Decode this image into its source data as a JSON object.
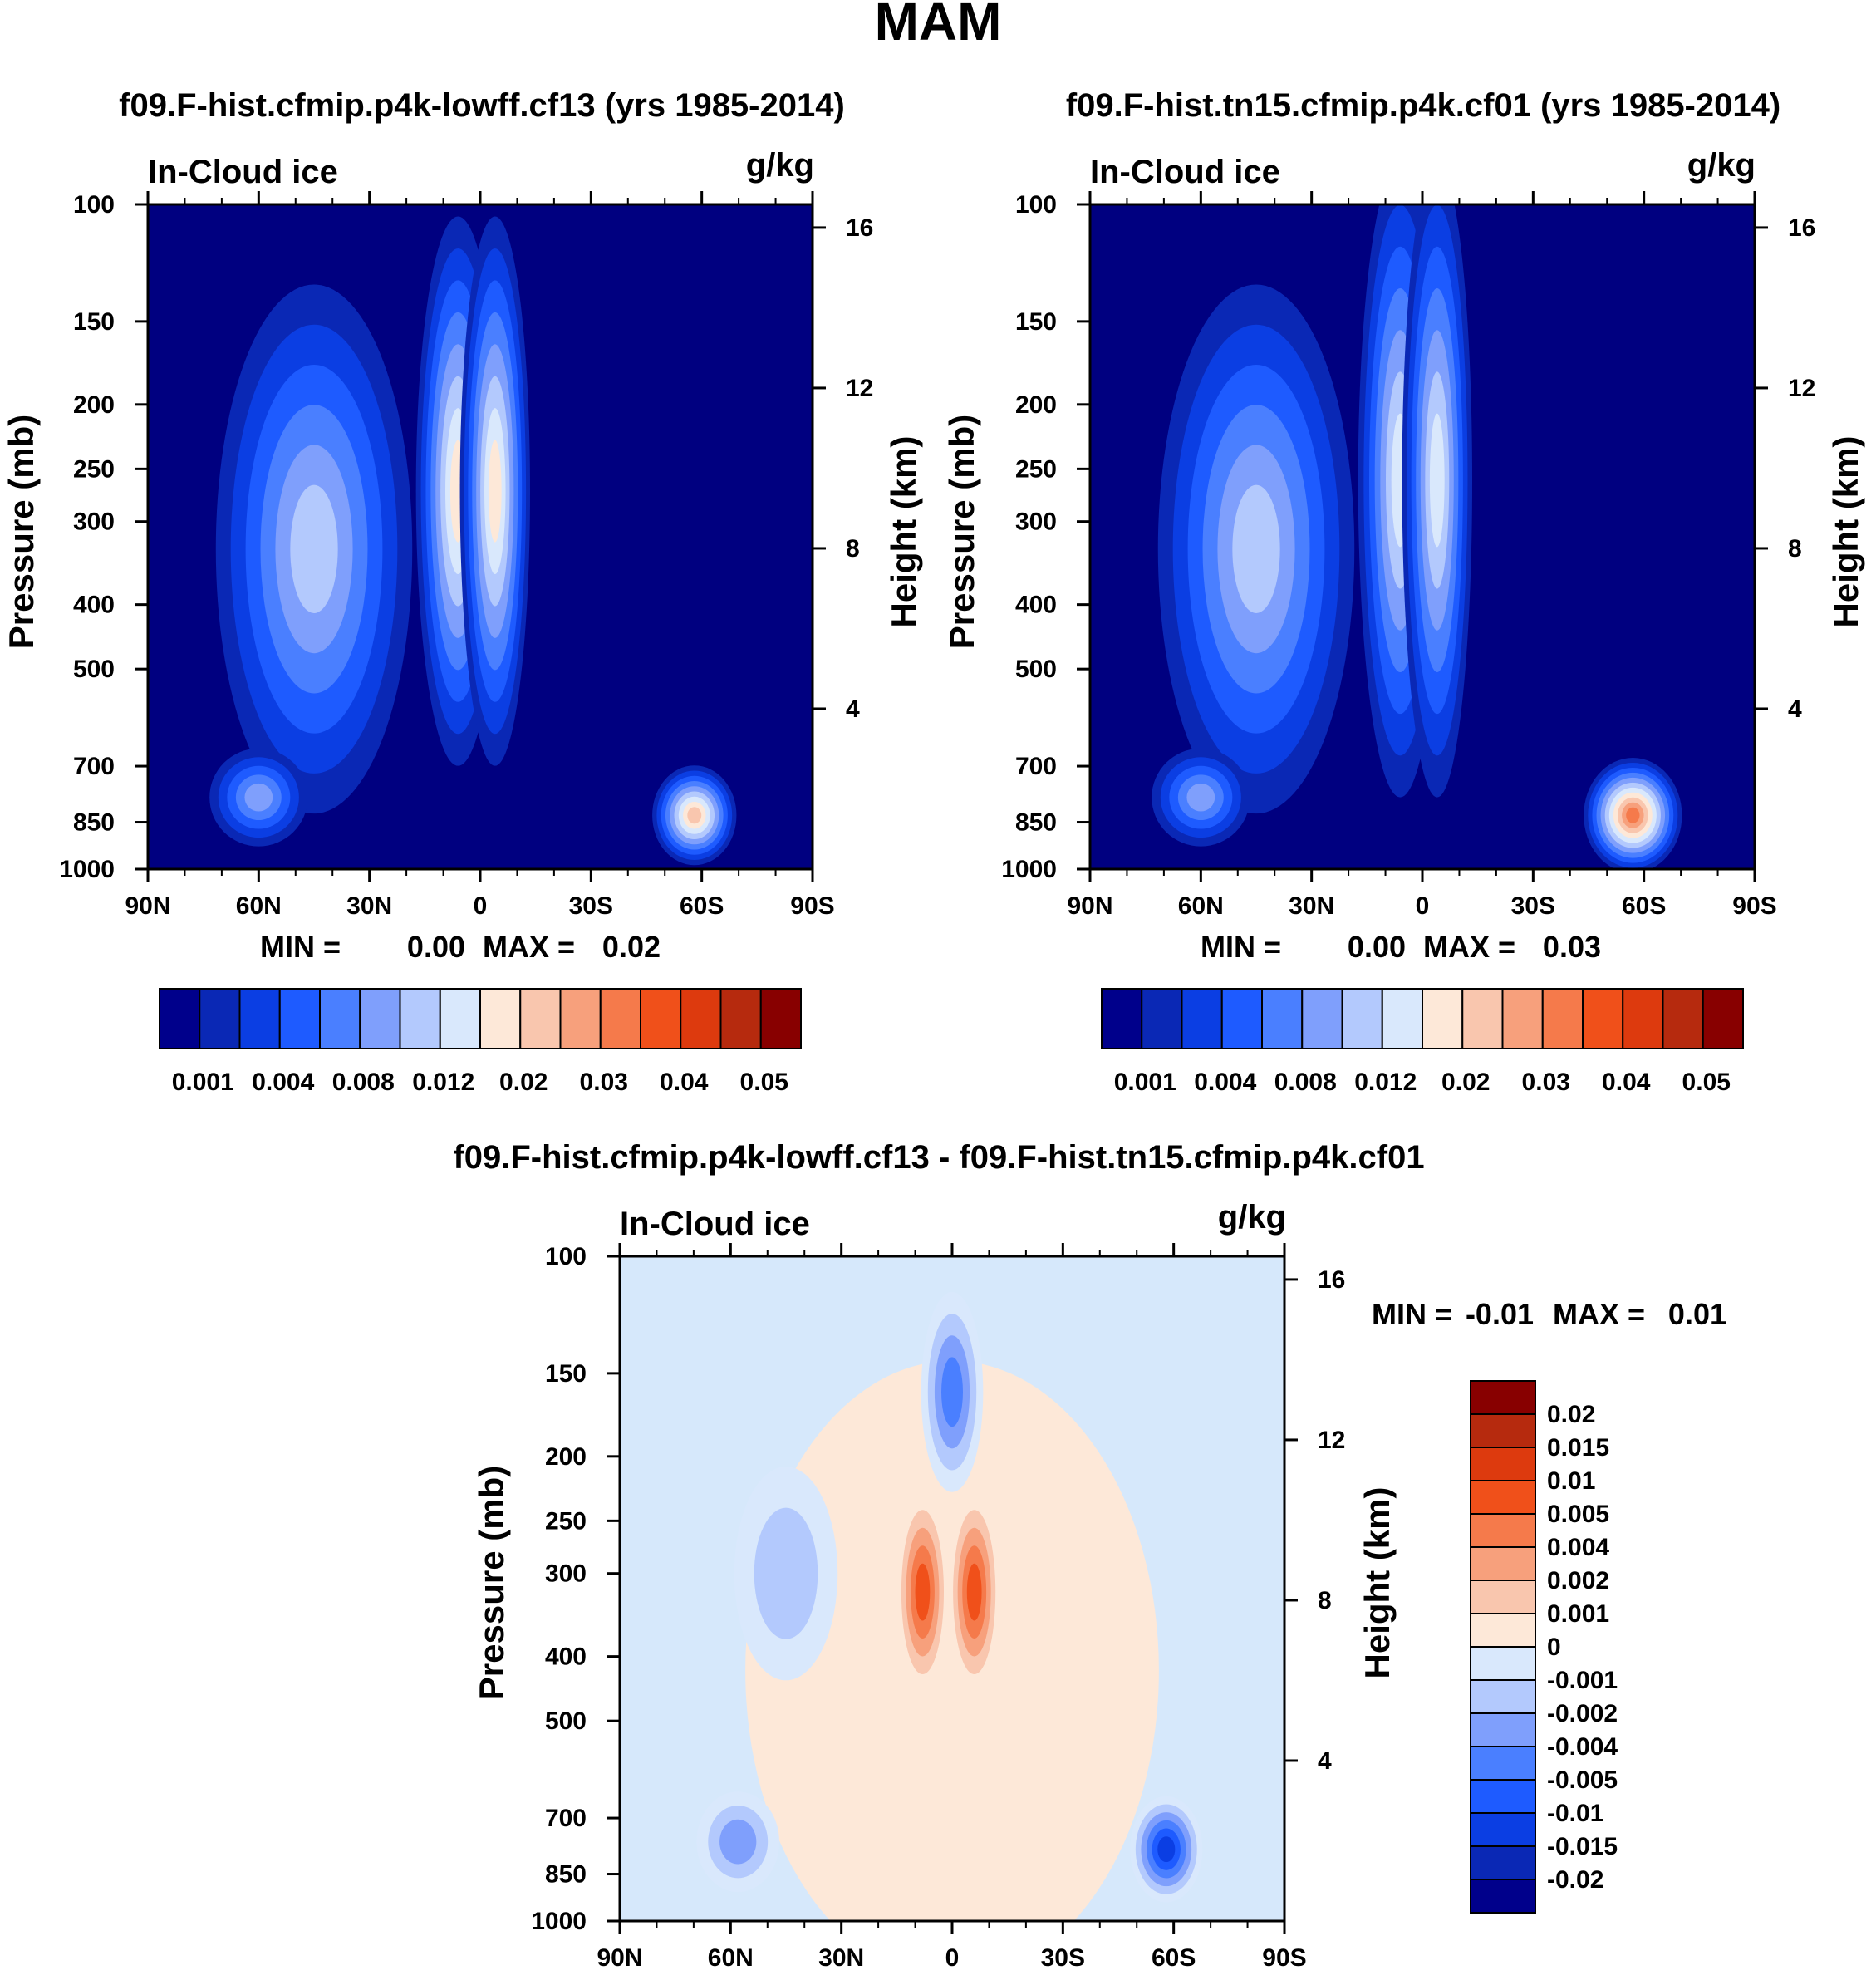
{
  "figure": {
    "title": "MAM",
    "shared_tick_labels": {
      "lat": [
        "90N",
        "60N",
        "30N",
        "0",
        "30S",
        "60S",
        "90S"
      ],
      "pressure": [
        "100",
        "150",
        "200",
        "250",
        "300",
        "400",
        "500",
        "700",
        "850",
        "1000"
      ],
      "height": [
        "4",
        "8",
        "12",
        "16"
      ]
    },
    "colors": {
      "panel_background": "#000080",
      "diff_background": "#d6e8fb",
      "ice_palette": [
        "#00008b",
        "#0a28b5",
        "#0b3ee3",
        "#1e5bff",
        "#4a7fff",
        "#7f9ffc",
        "#b3c9fd",
        "#d9e8fc",
        "#fde8d8",
        "#f9c6ae",
        "#f7a07c",
        "#f57a4b",
        "#f0501a",
        "#dd3a0e",
        "#b62a0e",
        "#880000"
      ],
      "diff_palette": [
        "#880000",
        "#b62a0e",
        "#dd3a0e",
        "#f0501a",
        "#f57a4b",
        "#f7a07c",
        "#f9c6ae",
        "#fde8d8",
        "#d9e8fc",
        "#b3c9fd",
        "#7f9ffc",
        "#4a7fff",
        "#1e5bff",
        "#0b3ee3",
        "#0a28b5",
        "#00008b"
      ]
    }
  },
  "chart_data": [
    {
      "type": "heatmap",
      "title": "f09.F-hist.cfmip.p4k-lowff.cf13 (yrs 1985-2014)",
      "left_label": "In-Cloud ice",
      "right_label": "g/kg",
      "ylabel": "Pressure (mb)",
      "y2label": "Height (km)",
      "x_ticks": [
        "90N",
        "60N",
        "30N",
        "0",
        "30S",
        "60S",
        "90S"
      ],
      "x_range": [
        90,
        -90
      ],
      "y_ticks": [
        100,
        150,
        200,
        250,
        300,
        400,
        500,
        700,
        850,
        1000
      ],
      "y_range": [
        100,
        1000
      ],
      "y_scale": "log",
      "y2_ticks": [
        4,
        8,
        12,
        16
      ],
      "stats": {
        "min_label": "MIN =",
        "min": "0.00",
        "max_label": "MAX =",
        "max": "0.02"
      },
      "colorbar": {
        "orientation": "horizontal",
        "labels": [
          "0.001",
          "0.004",
          "0.008",
          "0.012",
          "0.02",
          "0.03",
          "0.04",
          "0.05"
        ]
      },
      "blobs": [
        {
          "lat": 45,
          "p": 330,
          "level": 6,
          "wlat": 14,
          "wp": 260
        },
        {
          "lat": 6,
          "p": 270,
          "level": 8,
          "wlat": 6,
          "wp": 220
        },
        {
          "lat": -4,
          "p": 270,
          "level": 8,
          "wlat": 5,
          "wp": 220
        },
        {
          "lat": 60,
          "p": 780,
          "level": 5,
          "wlat": 7,
          "wp": 120
        },
        {
          "lat": -58,
          "p": 830,
          "level": 9,
          "wlat": 6,
          "wp": 130
        }
      ]
    },
    {
      "type": "heatmap",
      "title": "f09.F-hist.tn15.cfmip.p4k.cf01 (yrs 1985-2014)",
      "left_label": "In-Cloud ice",
      "right_label": "g/kg",
      "ylabel": "Pressure (mb)",
      "y2label": "Height (km)",
      "x_ticks": [
        "90N",
        "60N",
        "30N",
        "0",
        "30S",
        "60S",
        "90S"
      ],
      "x_range": [
        90,
        -90
      ],
      "y_ticks": [
        100,
        150,
        200,
        250,
        300,
        400,
        500,
        700,
        850,
        1000
      ],
      "y_range": [
        100,
        1000
      ],
      "y_scale": "log",
      "y2_ticks": [
        4,
        8,
        12,
        16
      ],
      "stats": {
        "min_label": "MIN =",
        "min": "0.00",
        "max_label": "MAX =",
        "max": "0.03"
      },
      "colorbar": {
        "orientation": "horizontal",
        "labels": [
          "0.001",
          "0.004",
          "0.008",
          "0.012",
          "0.02",
          "0.03",
          "0.04",
          "0.05"
        ]
      },
      "blobs": [
        {
          "lat": 45,
          "p": 330,
          "level": 6,
          "wlat": 14,
          "wp": 260
        },
        {
          "lat": 6,
          "p": 260,
          "level": 7,
          "wlat": 6,
          "wp": 240
        },
        {
          "lat": -4,
          "p": 260,
          "level": 7,
          "wlat": 5,
          "wp": 240
        },
        {
          "lat": 60,
          "p": 780,
          "level": 5,
          "wlat": 7,
          "wp": 120
        },
        {
          "lat": -57,
          "p": 830,
          "level": 11,
          "wlat": 7,
          "wp": 150
        }
      ]
    },
    {
      "type": "heatmap",
      "title": "f09.F-hist.cfmip.p4k-lowff.cf13 - f09.F-hist.tn15.cfmip.p4k.cf01",
      "left_label": "In-Cloud ice",
      "right_label": "g/kg",
      "ylabel": "Pressure (mb)",
      "y2label": "Height (km)",
      "x_ticks": [
        "90N",
        "60N",
        "30N",
        "0",
        "30S",
        "60S",
        "90S"
      ],
      "x_range": [
        90,
        -90
      ],
      "y_ticks": [
        100,
        150,
        200,
        250,
        300,
        400,
        500,
        700,
        850,
        1000
      ],
      "y_range": [
        100,
        1000
      ],
      "y_scale": "log",
      "y2_ticks": [
        4,
        8,
        12,
        16
      ],
      "stats": {
        "min_label": "MIN =",
        "min": "-0.01",
        "max_label": "MAX =",
        "max": "0.01"
      },
      "colorbar": {
        "orientation": "vertical",
        "labels": [
          "0.02",
          "0.015",
          "0.01",
          "0.005",
          "0.004",
          "0.002",
          "0.001",
          "0",
          "-0.001",
          "-0.002",
          "-0.004",
          "-0.005",
          "-0.01",
          "-0.015",
          "-0.02"
        ]
      },
      "blobs": [
        {
          "lat": 0,
          "p": 420,
          "level": 7,
          "wlat": 40,
          "wp": 380,
          "sign": "pos"
        },
        {
          "lat": 8,
          "p": 320,
          "level": 3,
          "wlat": 5,
          "wp": 100,
          "sign": "pos"
        },
        {
          "lat": -6,
          "p": 320,
          "level": 3,
          "wlat": 5,
          "wp": 100,
          "sign": "pos"
        },
        {
          "lat": 0,
          "p": 160,
          "level": 11,
          "wlat": 6,
          "wp": 50,
          "sign": "neg"
        },
        {
          "lat": 45,
          "p": 300,
          "level": 9,
          "wlat": 10,
          "wp": 100,
          "sign": "neg"
        },
        {
          "lat": 58,
          "p": 760,
          "level": 10,
          "wlat": 8,
          "wp": 120,
          "sign": "neg"
        },
        {
          "lat": -58,
          "p": 780,
          "level": 13,
          "wlat": 7,
          "wp": 130,
          "sign": "neg"
        }
      ]
    }
  ]
}
